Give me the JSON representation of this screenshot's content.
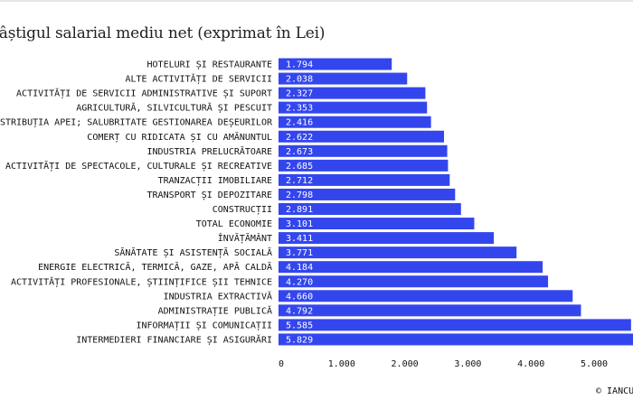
{
  "title": "Câștigul salarial mediu net (exprimat în Lei)",
  "credit": "© IANCU",
  "colors": {
    "bar": "#3346ee",
    "value_text": "#ffffff",
    "text": "#111111"
  },
  "chart_data": {
    "type": "bar",
    "orientation": "horizontal",
    "title": "Câștigul salarial mediu net (exprimat în Lei)",
    "categories": [
      "HOTELURI ȘI RESTAURANTE",
      "ALTE ACTIVITĂȚI DE SERVICII",
      "ACTIVITĂȚI DE SERVICII ADMINISTRATIVE ȘI SUPORT",
      "AGRICULTURĂ, SILVICULTURĂ ȘI PESCUIT",
      "DISTRIBUȚIA APEI; SALUBRITATE GESTIONAREA DEȘEURILOR",
      "COMERȚ CU RIDICATA ȘI CU AMĂNUNTUL",
      "INDUSTRIA PRELUCRĂTOARE",
      "ACTIVITĂȚI DE SPECTACOLE, CULTURALE ȘI RECREATIVE",
      "TRANZACȚII IMOBILIARE",
      "TRANSPORT ȘI DEPOZITARE",
      "CONSTRUCȚII",
      "TOTAL ECONOMIE",
      "ÎNVĂȚĂMÂNT",
      "SĂNĂTATE ȘI ASISTENȚĂ SOCIALĂ",
      "ENERGIE ELECTRICĂ, TERMICĂ, GAZE, APĂ CALDĂ",
      "ACTIVITĂȚI PROFESIONALE, ȘTIINȚIFICE ȘII TEHNICE",
      "INDUSTRIA EXTRACTIVĂ",
      "ADMINISTRAȚIE PUBLICĂ",
      "INFORMAȚII ȘI COMUNICAȚII",
      "INTERMEDIERI FINANCIARE ȘI ASIGURĂRI"
    ],
    "values": [
      1794,
      2038,
      2327,
      2353,
      2416,
      2622,
      2673,
      2685,
      2712,
      2798,
      2891,
      3101,
      3411,
      3771,
      4184,
      4270,
      4660,
      4792,
      5585,
      5829
    ],
    "value_labels": [
      "1.794",
      "2.038",
      "2.327",
      "2.353",
      "2.416",
      "2.622",
      "2.673",
      "2.685",
      "2.712",
      "2.798",
      "2.891",
      "3.101",
      "3.411",
      "3.771",
      "4.184",
      "4.270",
      "4.660",
      "4.792",
      "5.585",
      "5.829"
    ],
    "x_ticks": [
      0,
      1000,
      2000,
      3000,
      4000,
      5000
    ],
    "x_tick_labels": [
      "0",
      "1.000",
      "2.000",
      "3.000",
      "4.000",
      "5.000"
    ],
    "xlim": [
      0,
      5829
    ],
    "grid": false,
    "legend": "none"
  }
}
